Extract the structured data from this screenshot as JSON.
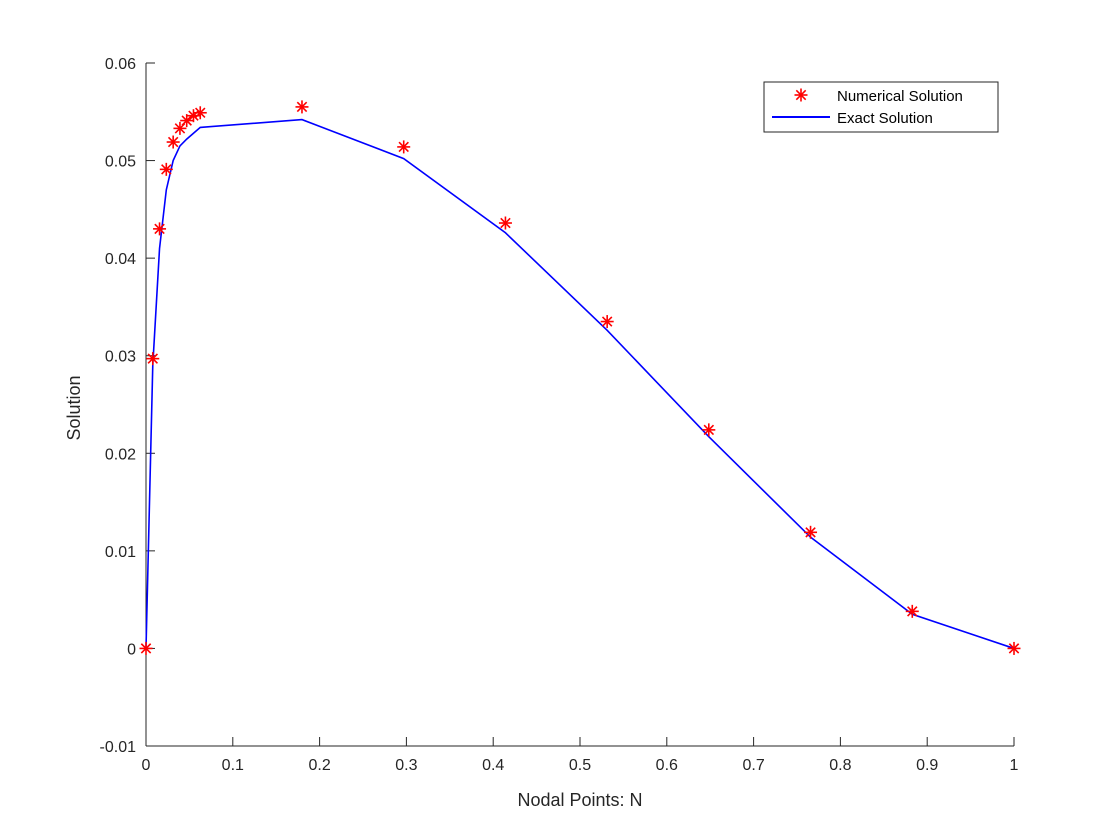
{
  "chart_data": {
    "type": "line",
    "title": "",
    "xlabel": "Nodal Points: N",
    "ylabel": "Solution",
    "xlim": [
      0,
      1
    ],
    "ylim": [
      -0.01,
      0.06
    ],
    "xticks": [
      0,
      0.1,
      0.2,
      0.3,
      0.4,
      0.5,
      0.6,
      0.7,
      0.8,
      0.9,
      1
    ],
    "xtick_labels": [
      "0",
      "0.1",
      "0.2",
      "0.3",
      "0.4",
      "0.5",
      "0.6",
      "0.7",
      "0.8",
      "0.9",
      "1"
    ],
    "yticks": [
      -0.01,
      0,
      0.01,
      0.02,
      0.03,
      0.04,
      0.05,
      0.06
    ],
    "ytick_labels": [
      "-0.01",
      "0",
      "0.01",
      "0.02",
      "0.03",
      "0.04",
      "0.05",
      "0.06"
    ],
    "grid": false,
    "legend_position": "top-right",
    "series": [
      {
        "name": "Numerical Solution",
        "kind": "scatter",
        "marker": "asterisk",
        "color": "#ff0000",
        "x": [
          0,
          0.0078,
          0.0156,
          0.0234,
          0.0313,
          0.0391,
          0.0469,
          0.0547,
          0.0625,
          0.1797,
          0.2969,
          0.4141,
          0.5313,
          0.6484,
          0.7656,
          0.8828,
          1
        ],
        "y": [
          0,
          0.0297,
          0.043,
          0.0491,
          0.0519,
          0.0533,
          0.0541,
          0.0546,
          0.0549,
          0.0555,
          0.0514,
          0.0436,
          0.0335,
          0.0224,
          0.0119,
          0.0038,
          0
        ]
      },
      {
        "name": "Exact Solution",
        "kind": "line",
        "color": "#0000ff",
        "x": [
          0,
          0.0078,
          0.0156,
          0.0234,
          0.0313,
          0.0391,
          0.0469,
          0.0547,
          0.0625,
          0.1797,
          0.2969,
          0.4141,
          0.5313,
          0.6484,
          0.7656,
          0.8828,
          1
        ],
        "y": [
          0,
          0.029,
          0.041,
          0.047,
          0.05,
          0.0515,
          0.0522,
          0.0528,
          0.0534,
          0.0542,
          0.0502,
          0.0426,
          0.0326,
          0.0217,
          0.0114,
          0.0035,
          0
        ]
      }
    ]
  }
}
